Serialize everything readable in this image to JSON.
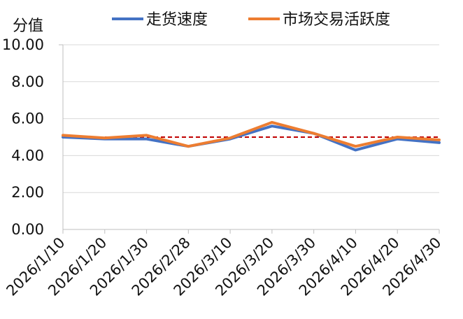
{
  "chart_data": {
    "type": "line",
    "ylabel": "分值",
    "ylim": [
      0,
      10
    ],
    "y_ticks": [
      "0.00",
      "2.00",
      "4.00",
      "6.00",
      "8.00",
      "10.00"
    ],
    "x": [
      "2026/1/10",
      "2026/1/20",
      "2026/1/30",
      "2026/2/28",
      "2026/3/10",
      "2026/3/20",
      "2026/3/30",
      "2026/4/10",
      "2026/4/20",
      "2026/4/30"
    ],
    "series": [
      {
        "name": "走货速度",
        "color": "#4472C4",
        "values": [
          5.0,
          4.9,
          4.9,
          4.5,
          4.9,
          5.6,
          5.2,
          4.3,
          4.9,
          4.7
        ]
      },
      {
        "name": "市场交易活跃度",
        "color": "#ED7D31",
        "values": [
          5.1,
          4.95,
          5.1,
          4.5,
          4.95,
          5.8,
          5.2,
          4.5,
          5.0,
          4.85
        ]
      }
    ],
    "reference_line": {
      "value": 5.0,
      "color": "#C00000",
      "style": "dashed"
    },
    "grid": true,
    "legend_position": "top"
  }
}
